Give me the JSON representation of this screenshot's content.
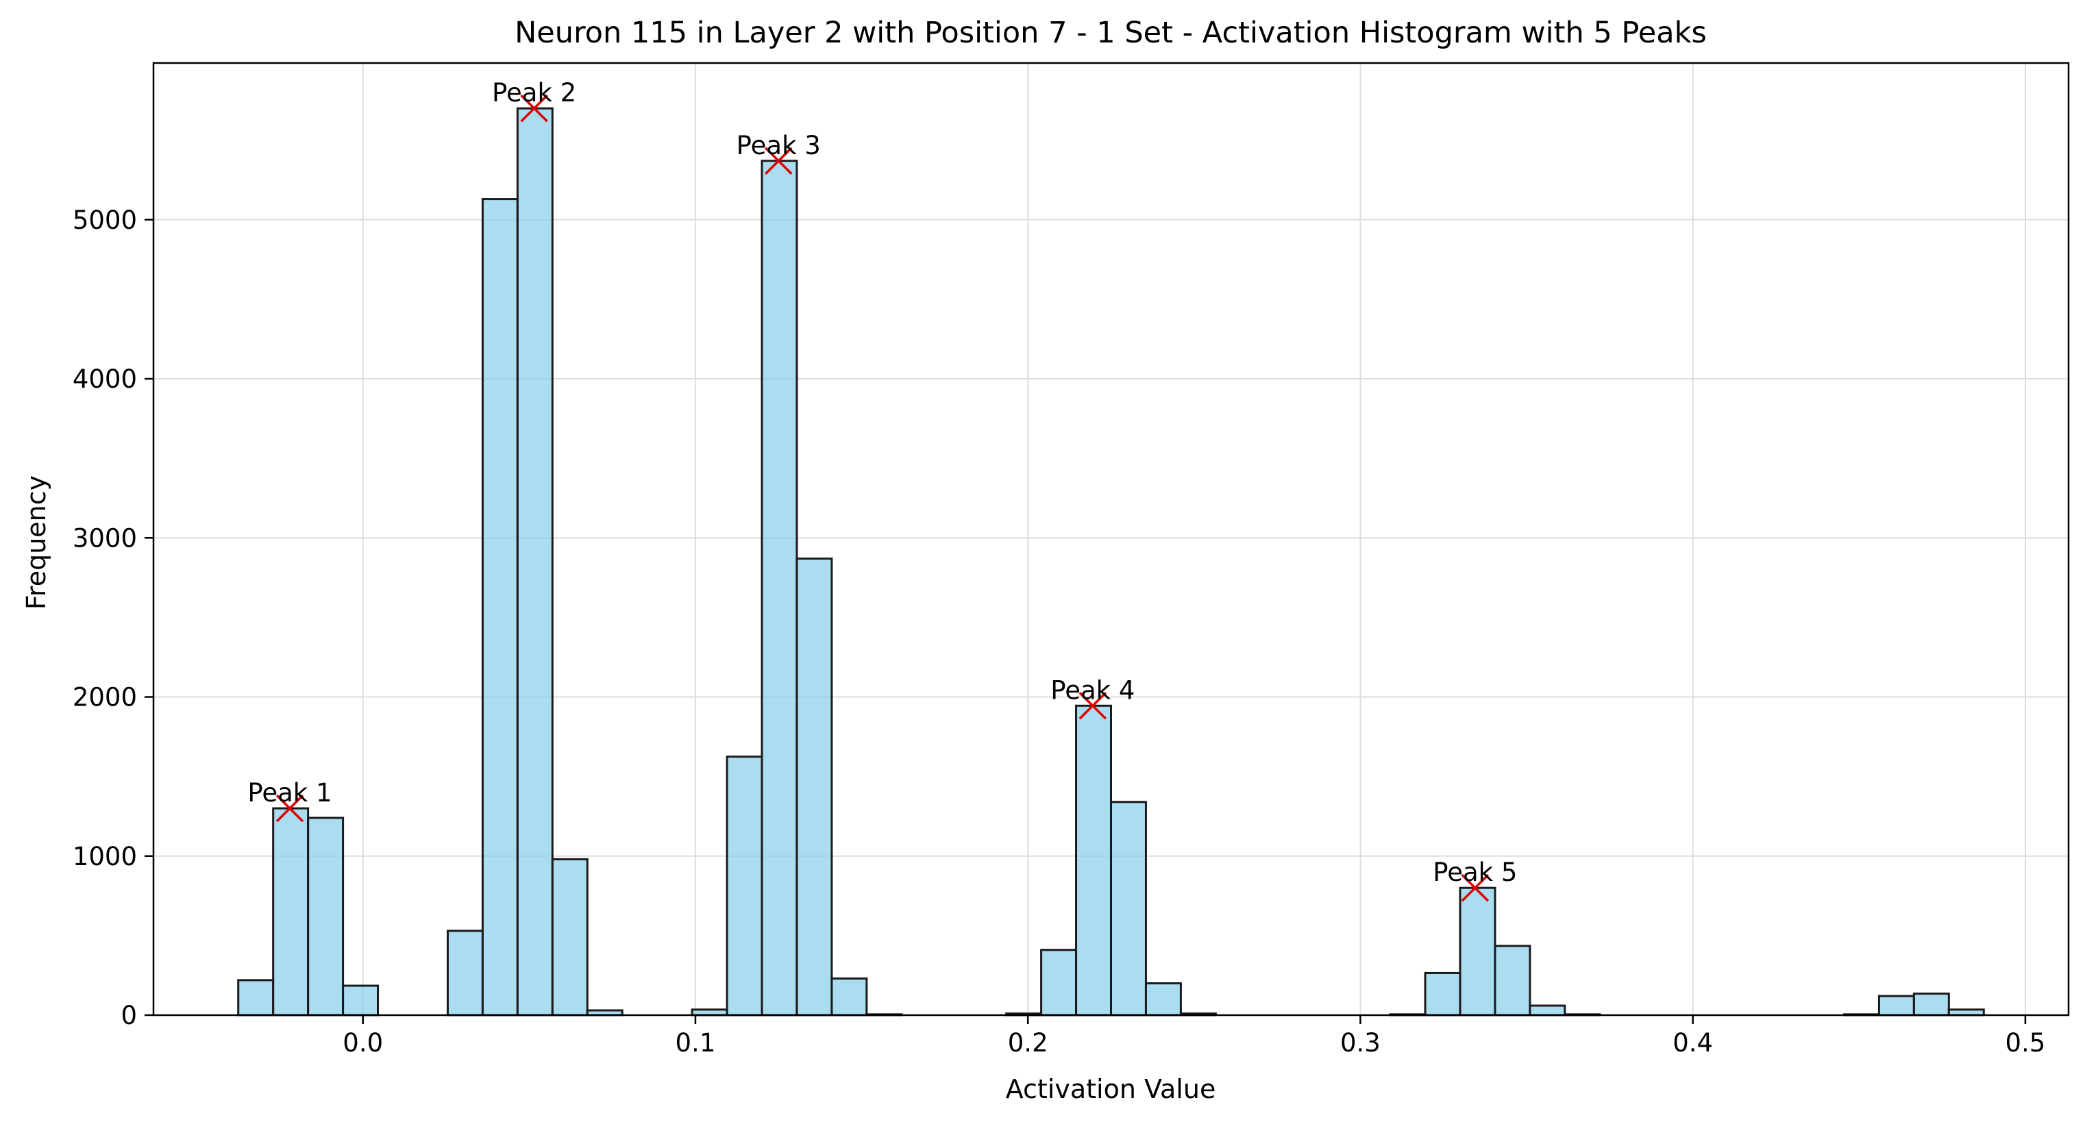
{
  "chart_data": {
    "type": "bar",
    "title": "Neuron 115 in Layer 2 with Position 7 - 1 Set - Activation Histogram with 5 Peaks",
    "xlabel": "Activation Value",
    "ylabel": "Frequency",
    "xlim": [
      -0.063,
      0.513
    ],
    "ylim": [
      0,
      5985
    ],
    "grid": true,
    "bar_color": "#87ceeb",
    "edge_color": "#1a1a1a",
    "marker_color": "#e00000",
    "x_ticks": [
      0.0,
      0.1,
      0.2,
      0.3,
      0.4,
      0.5
    ],
    "x_tick_labels": [
      "0.0",
      "0.1",
      "0.2",
      "0.3",
      "0.4",
      "0.5"
    ],
    "y_ticks": [
      0,
      1000,
      2000,
      3000,
      4000,
      5000
    ],
    "y_tick_labels": [
      "0",
      "1000",
      "2000",
      "3000",
      "4000",
      "5000"
    ],
    "bin_start": -0.0375,
    "bin_width": 0.0105,
    "counts": [
      220,
      1300,
      1240,
      185,
      0,
      0,
      530,
      5130,
      5700,
      980,
      30,
      0,
      0,
      35,
      1625,
      5370,
      2870,
      230,
      5,
      0,
      0,
      0,
      10,
      410,
      1945,
      1340,
      200,
      10,
      0,
      0,
      0,
      0,
      0,
      5,
      265,
      800,
      435,
      60,
      5,
      0,
      0,
      0,
      0,
      0,
      0,
      0,
      5,
      120,
      135,
      35
    ],
    "peaks": [
      {
        "label": "Peak 1",
        "x": -0.022,
        "y": 1300
      },
      {
        "label": "Peak 2",
        "x": 0.0515,
        "y": 5700
      },
      {
        "label": "Peak 3",
        "x": 0.125,
        "y": 5370
      },
      {
        "label": "Peak 4",
        "x": 0.2195,
        "y": 1945
      },
      {
        "label": "Peak 5",
        "x": 0.3345,
        "y": 800
      }
    ]
  }
}
